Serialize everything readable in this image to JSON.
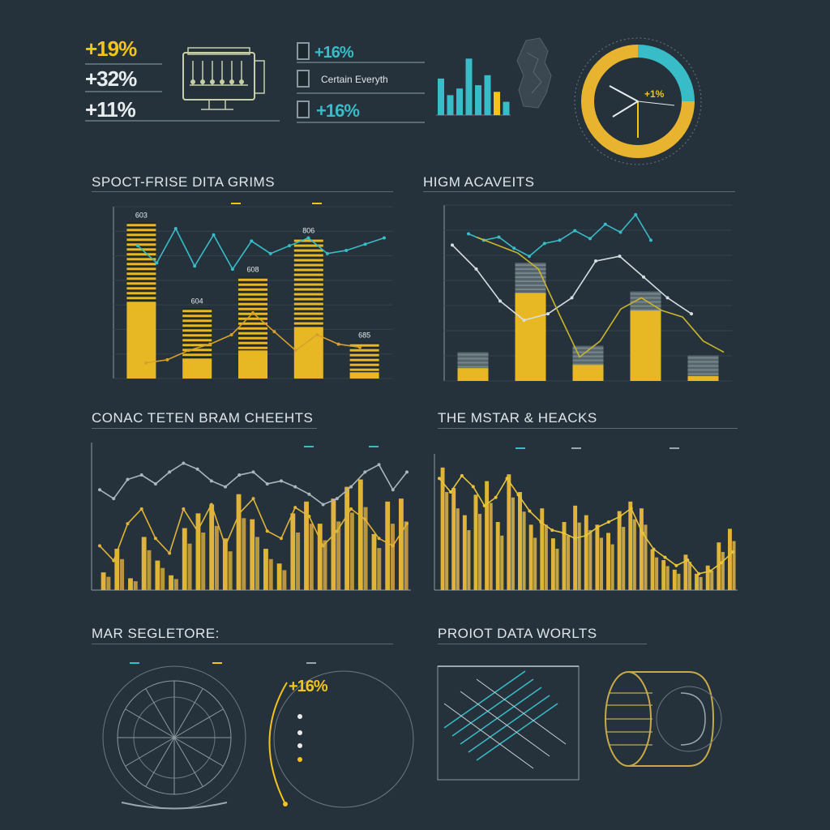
{
  "kpis": {
    "k1": "+19%",
    "k2": "+32%",
    "k3": "+11%",
    "k4": "+16%",
    "k5_label": "Certain Everyth",
    "k6": "+16%"
  },
  "gauge": {
    "value_label": "+1%",
    "segments": [
      {
        "name": "teal",
        "value": 25,
        "color": "#38bcc8"
      },
      {
        "name": "yellow",
        "value": 75,
        "color": "#e8b430"
      }
    ]
  },
  "mini_bars": {
    "values": [
      55,
      30,
      40,
      85,
      45,
      60,
      35,
      20
    ],
    "colors": [
      "#38bcc8",
      "#38bcc8",
      "#38bcc8",
      "#38bcc8",
      "#38bcc8",
      "#38bcc8",
      "#f2c41c",
      "#38bcc8"
    ]
  },
  "sections": {
    "s1": "SPOCT-FRISE DITA GRIMS",
    "s2": "HIGM ACAVEITS",
    "s3": "CONAC TETEN BRAM CHEEHTS",
    "s4": "THE MSTAR & HEACKS",
    "s5": "MAR SEGLETORE:",
    "s6": "PROIOT DATA WORLTS"
  },
  "donut_callout": "+16%",
  "chart_data": [
    {
      "type": "bar",
      "id": "chart1",
      "bars": [
        {
          "total": 100,
          "solid": 48
        },
        {
          "total": 45,
          "solid": 12
        },
        {
          "total": 65,
          "solid": 18
        },
        {
          "total": 90,
          "solid": 33
        },
        {
          "total": 23,
          "solid": 4
        }
      ],
      "bar_labels": [
        "603",
        "604",
        "608",
        "806",
        "685"
      ],
      "line_teal": [
        85,
        74,
        96,
        72,
        92,
        70,
        88,
        80,
        85,
        90,
        80,
        82,
        86,
        90
      ],
      "line_yellow": [
        10,
        12,
        18,
        22,
        28,
        42,
        30,
        18,
        28,
        22,
        20
      ],
      "ylim": [
        0,
        110
      ]
    },
    {
      "type": "bar",
      "id": "chart2",
      "bars": [
        {
          "total": 18,
          "solid": 8
        },
        {
          "total": 74,
          "solid": 55
        },
        {
          "total": 22,
          "solid": 10
        },
        {
          "total": 56,
          "solid": 44
        },
        {
          "total": 16,
          "solid": 3
        }
      ],
      "bar_labels": [
        "",
        "",
        "",
        "",
        ""
      ],
      "line_teal": [
        92,
        88,
        90,
        83,
        78,
        86,
        88,
        94,
        89,
        98,
        93,
        104,
        88
      ],
      "line_white": [
        85,
        70,
        50,
        38,
        42,
        52,
        75,
        78,
        65,
        52,
        42
      ],
      "line_yellow": [
        90,
        85,
        80,
        70,
        42,
        15,
        25,
        45,
        52,
        44,
        40,
        25,
        18
      ],
      "ylim": [
        0,
        110
      ]
    },
    {
      "type": "bar",
      "id": "chart3",
      "values": [
        12,
        28,
        8,
        36,
        20,
        10,
        42,
        52,
        58,
        35,
        65,
        48,
        28,
        18,
        52,
        60,
        45,
        62,
        70,
        75,
        38,
        60,
        62
      ],
      "line_teal": [
        68,
        62,
        75,
        78,
        72,
        80,
        86,
        82,
        74,
        70,
        78,
        80,
        72,
        74,
        70,
        65,
        58,
        62,
        70,
        80,
        85,
        68,
        80
      ],
      "line_yellow": [
        30,
        20,
        45,
        55,
        35,
        25,
        55,
        40,
        58,
        30,
        52,
        62,
        40,
        35,
        56,
        50,
        30,
        40,
        55,
        48,
        35,
        30,
        45
      ],
      "ylim": [
        0,
        100
      ]
    },
    {
      "type": "bar",
      "id": "chart4",
      "values": [
        90,
        75,
        55,
        70,
        80,
        50,
        85,
        72,
        48,
        60,
        38,
        50,
        62,
        55,
        48,
        42,
        58,
        65,
        60,
        30,
        22,
        15,
        26,
        12,
        18,
        35,
        45
      ],
      "line_yellow": [
        82,
        72,
        84,
        76,
        62,
        68,
        82,
        70,
        58,
        50,
        44,
        42,
        38,
        40,
        46,
        50,
        54,
        60,
        42,
        30,
        24,
        18,
        22,
        12,
        14,
        20,
        28
      ],
      "ylim": [
        0,
        100
      ]
    }
  ]
}
